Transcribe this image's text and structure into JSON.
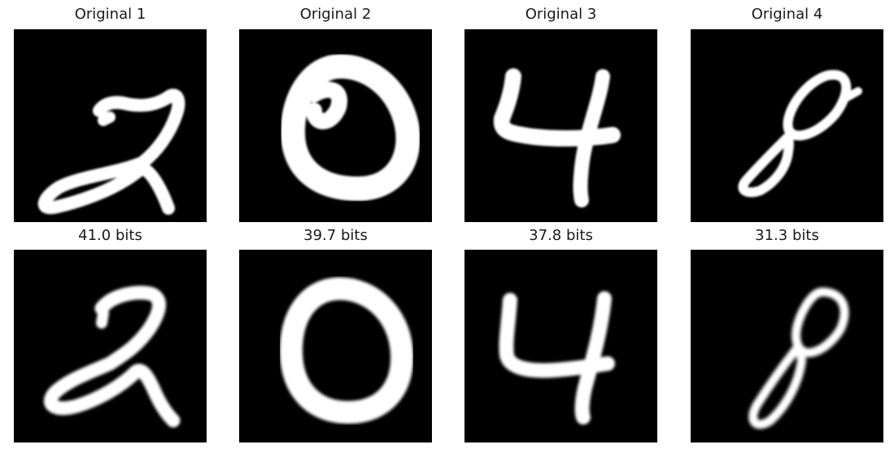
{
  "figure": {
    "originals": [
      {
        "title": "Original 1",
        "digit": "2"
      },
      {
        "title": "Original 2",
        "digit": "0"
      },
      {
        "title": "Original 3",
        "digit": "4"
      },
      {
        "title": "Original 4",
        "digit": "8"
      }
    ],
    "reconstructions": [
      {
        "title": "41.0 bits",
        "digit": "2"
      },
      {
        "title": "39.7 bits",
        "digit": "0"
      },
      {
        "title": "37.8 bits",
        "digit": "4"
      },
      {
        "title": "31.3 bits",
        "digit": "8"
      }
    ],
    "colors": {
      "background": "#000000",
      "stroke": "#ffffff",
      "title_text": "#1a1a1a"
    }
  }
}
